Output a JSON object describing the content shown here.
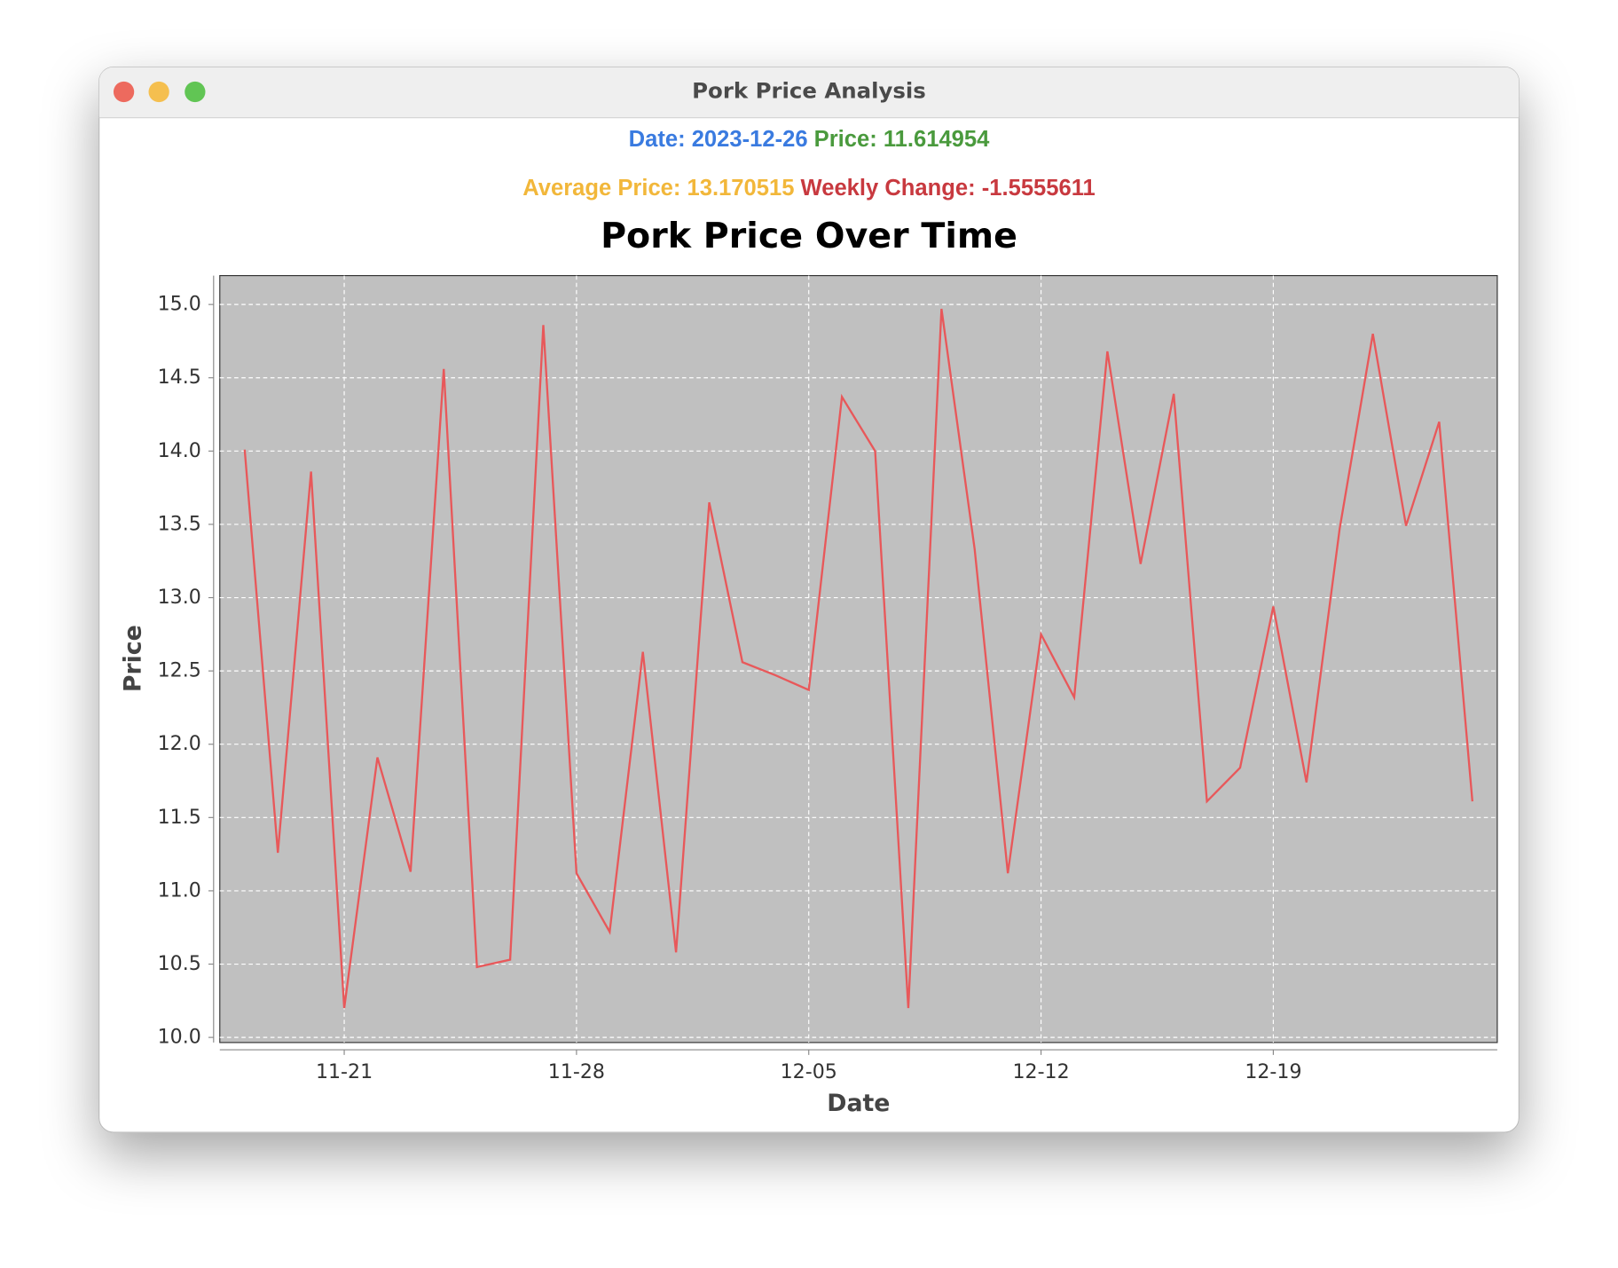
{
  "window_title": "Pork Price Analysis",
  "info": {
    "date": "Date: 2023-12-26",
    "price": "Price: 11.614954",
    "average": "Average Price: 13.170515",
    "weekly_change": "Weekly Change: -1.5555611"
  },
  "chart_data": {
    "type": "line",
    "title": "Pork Price Over Time",
    "x_label": "Date",
    "y_label": "Price",
    "categories": [
      "11-18",
      "11-19",
      "11-20",
      "11-21",
      "11-22",
      "11-23",
      "11-24",
      "11-25",
      "11-26",
      "11-27",
      "11-28",
      "11-29",
      "11-30",
      "12-01",
      "12-02",
      "12-03",
      "12-04",
      "12-05",
      "12-06",
      "12-07",
      "12-08",
      "12-09",
      "12-10",
      "12-11",
      "12-12",
      "12-13",
      "12-14",
      "12-15",
      "12-16",
      "12-17",
      "12-18",
      "12-19",
      "12-20",
      "12-21",
      "12-22",
      "12-23",
      "12-24",
      "12-25"
    ],
    "values": [
      14.01,
      11.26,
      13.86,
      10.2,
      11.91,
      11.13,
      14.56,
      10.48,
      10.53,
      14.86,
      11.12,
      10.72,
      12.63,
      10.58,
      13.65,
      12.56,
      12.47,
      12.37,
      14.37,
      14.0,
      10.2,
      14.97,
      13.33,
      11.12,
      12.75,
      12.32,
      14.68,
      13.23,
      14.39,
      11.61,
      11.84,
      12.94,
      11.74,
      13.47,
      14.8,
      13.49,
      14.2,
      11.61
    ],
    "color": "#e8585a",
    "xticks": [
      "11-21",
      "11-28",
      "12-05",
      "12-12",
      "12-19"
    ],
    "ylim": [
      9.965,
      15.197
    ],
    "yticks": [
      {
        "value": 10,
        "label": "10.0"
      },
      10.5,
      {
        "value": 11,
        "label": "11.0"
      },
      11.5,
      {
        "value": 12,
        "label": "12.0"
      },
      12.5,
      {
        "value": 13,
        "label": "13.0"
      },
      13.5,
      {
        "value": 14,
        "label": "14.0"
      },
      14.5,
      {
        "value": 15,
        "label": "15.0"
      }
    ],
    "grid": true
  }
}
